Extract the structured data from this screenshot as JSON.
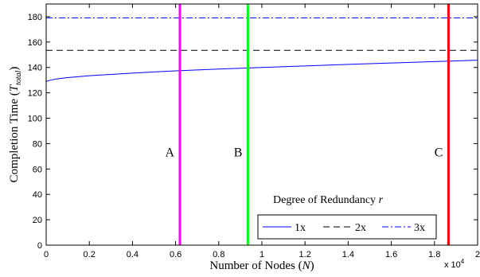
{
  "chart_data": {
    "type": "line",
    "title": "",
    "xlabel": "Number of Nodes",
    "xlabel_symbol": "N",
    "ylabel": "Completion Time",
    "ylabel_symbol": "T",
    "ylabel_subscript": "total",
    "x_exponent_label": "x 10",
    "x_exponent_power": "4",
    "xlim": [
      0,
      2
    ],
    "ylim": [
      0,
      190
    ],
    "x_ticks": [
      0,
      0.2,
      0.4,
      0.6,
      0.8,
      1,
      1.2,
      1.4,
      1.6,
      1.8,
      2
    ],
    "y_ticks": [
      0,
      20,
      40,
      60,
      80,
      100,
      120,
      140,
      160,
      180
    ],
    "grid": false,
    "series": [
      {
        "name": "1x",
        "color": "#0000ff",
        "dash": "solid",
        "x": [
          0,
          0.02,
          0.05,
          0.1,
          0.2,
          0.3,
          0.4,
          0.5,
          0.6,
          0.7,
          0.8,
          0.9,
          1.0,
          1.2,
          1.4,
          1.6,
          1.8,
          2.0
        ],
        "y": [
          129,
          130,
          131,
          132,
          133.5,
          134.5,
          135.5,
          136.5,
          137.3,
          138,
          138.7,
          139.4,
          140,
          141.2,
          142.4,
          143.5,
          144.6,
          145.7
        ]
      },
      {
        "name": "2x",
        "color": "#000000",
        "dash": "dashed",
        "x": [
          0,
          2
        ],
        "y": [
          153.5,
          153.5
        ]
      },
      {
        "name": "3x",
        "color": "#0000ff",
        "dash": "dashdot",
        "x": [
          0,
          2
        ],
        "y": [
          179,
          179
        ]
      }
    ],
    "vertical_markers": [
      {
        "label": "A",
        "x": 0.62,
        "color": "#ff00ff"
      },
      {
        "label": "B",
        "x": 0.935,
        "color": "#00ff00"
      },
      {
        "label": "C",
        "x": 1.865,
        "color": "#ff0000"
      }
    ],
    "legend": {
      "title": "Degree of Redundancy",
      "title_symbol": "r",
      "placement": "bottom-right",
      "entries": [
        "1x",
        "2x",
        "3x"
      ]
    }
  }
}
